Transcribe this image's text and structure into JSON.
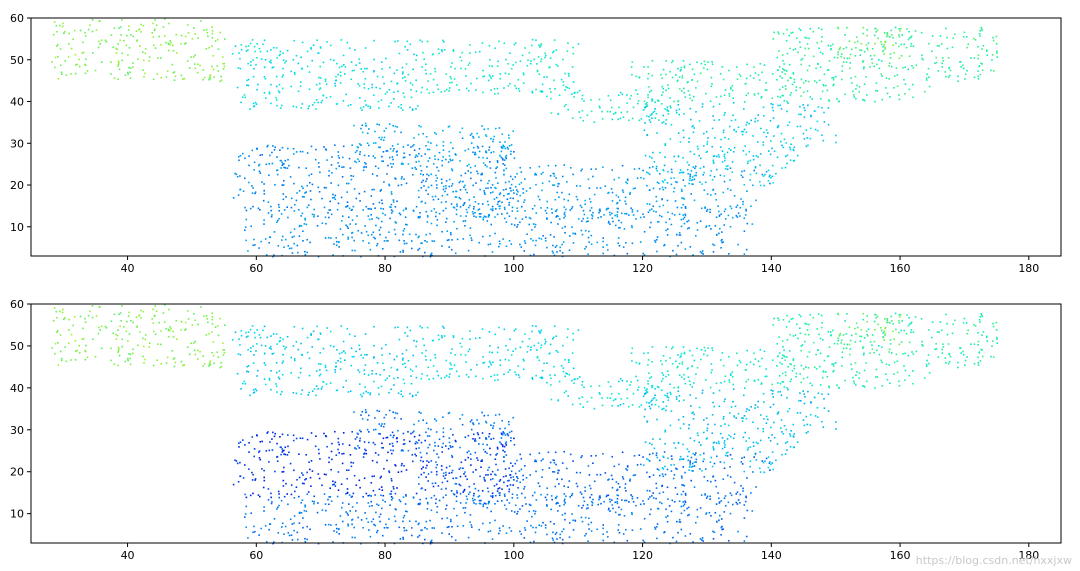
{
  "watermark": "https://blog.csdn.net/hxxjxw",
  "colors": {
    "axis": "#000000",
    "background": "#ffffff",
    "colormap": [
      "#0000d0",
      "#0033e8",
      "#0077f0",
      "#00b0f0",
      "#00e0e8",
      "#20f0a0",
      "#80f040",
      "#d0f020",
      "#ffee00"
    ]
  },
  "chart_data": [
    {
      "type": "scatter",
      "title": "",
      "xlabel": "",
      "ylabel": "",
      "xlim": [
        25,
        185
      ],
      "ylim": [
        3,
        60
      ],
      "xticks": [
        40,
        60,
        80,
        100,
        120,
        140,
        160,
        180
      ],
      "yticks": [
        10,
        20,
        30,
        40,
        50,
        60
      ],
      "grid": false,
      "legend": "none",
      "marker": "point",
      "colormap": "jet-like (blue = low, yellow = high)",
      "color_variable_range": "low in dense band x≈57–100, y≈15–30; high near x≈28–55 and x≈150–175, y≈45–60",
      "clusters": [
        {
          "x_range": [
            56,
            100
          ],
          "y_range": [
            14,
            30
          ],
          "level": 0.28
        },
        {
          "x_range": [
            75,
            100
          ],
          "y_range": [
            25,
            35
          ],
          "level": 0.36
        },
        {
          "x_range": [
            85,
            140
          ],
          "y_range": [
            12,
            25
          ],
          "level": 0.33
        },
        {
          "x_range": [
            58,
            137
          ],
          "y_range": [
            3,
            15
          ],
          "level": 0.3
        },
        {
          "x_range": [
            85,
            110
          ],
          "y_range": [
            42,
            55
          ],
          "level": 0.55
        },
        {
          "x_range": [
            105,
            125
          ],
          "y_range": [
            35,
            43
          ],
          "level": 0.55
        },
        {
          "x_range": [
            118,
            145
          ],
          "y_range": [
            40,
            50
          ],
          "level": 0.6
        },
        {
          "x_range": [
            56,
            85
          ],
          "y_range": [
            38,
            55
          ],
          "level": 0.5
        },
        {
          "x_range": [
            140,
            175
          ],
          "y_range": [
            40,
            58
          ],
          "level": 0.62
        },
        {
          "x_range": [
            28,
            55
          ],
          "y_range": [
            45,
            60
          ],
          "level": 0.75
        },
        {
          "x_range": [
            150,
            160
          ],
          "y_range": [
            48,
            58
          ],
          "level": 0.7
        },
        {
          "x_range": [
            120,
            150
          ],
          "y_range": [
            20,
            40
          ],
          "level": 0.45
        }
      ]
    },
    {
      "type": "scatter",
      "title": "",
      "xlabel": "",
      "ylabel": "",
      "xlim": [
        25,
        185
      ],
      "ylim": [
        3,
        60
      ],
      "xticks": [
        40,
        60,
        80,
        100,
        120,
        140,
        160,
        180
      ],
      "yticks": [
        10,
        20,
        30,
        40,
        50,
        60
      ],
      "grid": false,
      "legend": "none",
      "marker": "point",
      "colormap": "jet-like (blue = low, yellow = high)",
      "color_variable_range": "lowest (deep blue) in band x≈57–95, y≈18–30; high near x≈28–55 and x≈150–175, y≈45–60",
      "clusters": [
        {
          "x_range": [
            56,
            100
          ],
          "y_range": [
            14,
            30
          ],
          "level": 0.12
        },
        {
          "x_range": [
            75,
            100
          ],
          "y_range": [
            25,
            35
          ],
          "level": 0.25
        },
        {
          "x_range": [
            85,
            140
          ],
          "y_range": [
            12,
            25
          ],
          "level": 0.22
        },
        {
          "x_range": [
            58,
            137
          ],
          "y_range": [
            3,
            15
          ],
          "level": 0.25
        },
        {
          "x_range": [
            85,
            110
          ],
          "y_range": [
            42,
            55
          ],
          "level": 0.48
        },
        {
          "x_range": [
            105,
            125
          ],
          "y_range": [
            35,
            43
          ],
          "level": 0.5
        },
        {
          "x_range": [
            118,
            145
          ],
          "y_range": [
            40,
            50
          ],
          "level": 0.55
        },
        {
          "x_range": [
            56,
            85
          ],
          "y_range": [
            38,
            55
          ],
          "level": 0.45
        },
        {
          "x_range": [
            140,
            175
          ],
          "y_range": [
            40,
            58
          ],
          "level": 0.6
        },
        {
          "x_range": [
            28,
            55
          ],
          "y_range": [
            45,
            60
          ],
          "level": 0.75
        },
        {
          "x_range": [
            150,
            160
          ],
          "y_range": [
            48,
            58
          ],
          "level": 0.7
        },
        {
          "x_range": [
            120,
            150
          ],
          "y_range": [
            20,
            40
          ],
          "level": 0.42
        }
      ]
    }
  ]
}
